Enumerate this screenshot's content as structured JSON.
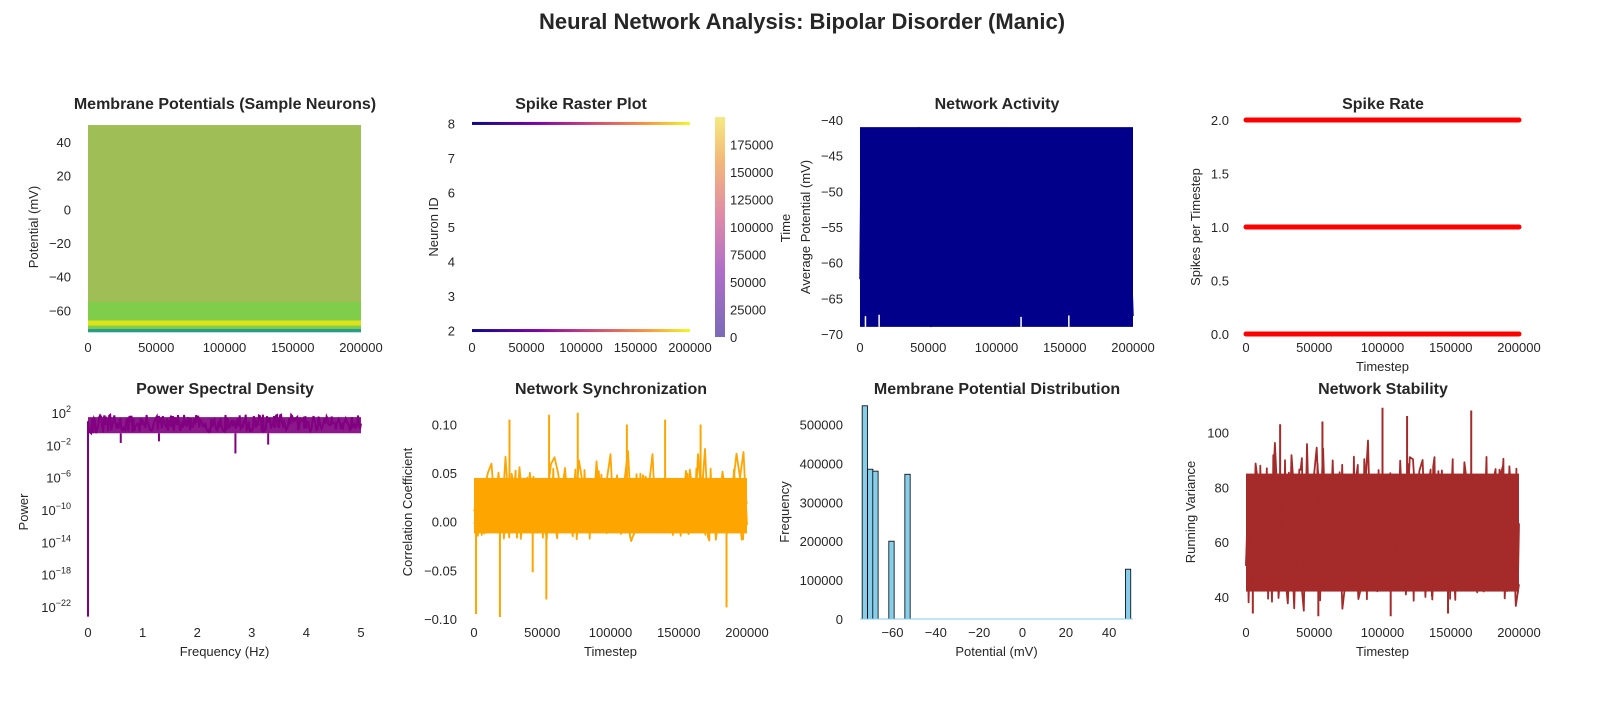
{
  "suptitle": "Neural Network Analysis: Bipolar Disorder (Manic)",
  "colors": {
    "membrane_fill": "#a0be56",
    "raster_low": "#0d0887",
    "raster_high": "#f0f921",
    "network_activity": "#00008b",
    "spike_rate": "#ff0000",
    "psd": "#800080",
    "sync": "#ffa500",
    "hist_fill": "#87ceeb",
    "hist_edge": "#000000",
    "stability": "#a52a2a",
    "text": "#262626"
  },
  "chart_data": [
    {
      "id": "membrane",
      "type": "line",
      "title": "Membrane Potentials (Sample Neurons)",
      "xlabel": "",
      "ylabel": "Potential (mV)",
      "xlim": [
        0,
        200000
      ],
      "ylim": [
        -74,
        53
      ],
      "xticks": [
        0,
        50000,
        100000,
        150000,
        200000
      ],
      "xtick_labels": [
        "0",
        "50000",
        "100000",
        "150000",
        "200000"
      ],
      "yticks": [
        -60,
        -40,
        -20,
        0,
        20,
        40
      ],
      "ytick_labels": [
        "−60",
        "−40",
        "−20",
        "0",
        "20",
        "40"
      ],
      "note": "many sample neurons oscillating between about -72 mV and +50 mV across all timesteps",
      "series": [
        {
          "values_range": [
            -72,
            50
          ],
          "color": "#a0be56"
        },
        {
          "values_range": [
            -72,
            -55
          ],
          "color": "#7fcd4b"
        },
        {
          "values_range": [
            -69,
            -66
          ],
          "color": "#dde318"
        },
        {
          "values_range": [
            -73,
            -71
          ],
          "color": "#2a9d8a"
        }
      ]
    },
    {
      "id": "raster",
      "type": "scatter",
      "title": "Spike Raster Plot",
      "xlabel": "",
      "ylabel": "Neuron ID",
      "colorbar_label": "Time",
      "xlim": [
        0,
        200000
      ],
      "ylim": [
        1.9,
        8.1
      ],
      "xticks": [
        0,
        50000,
        100000,
        150000,
        200000
      ],
      "xtick_labels": [
        "0",
        "50000",
        "100000",
        "150000",
        "200000"
      ],
      "yticks": [
        2,
        3,
        4,
        5,
        6,
        7,
        8
      ],
      "ytick_labels": [
        "2",
        "3",
        "4",
        "5",
        "6",
        "7",
        "8"
      ],
      "colorbar_ticks": [
        0,
        25000,
        50000,
        75000,
        100000,
        125000,
        150000,
        175000
      ],
      "colorbar_tick_labels": [
        "0",
        "25000",
        "50000",
        "75000",
        "100000",
        "125000",
        "150000",
        "175000"
      ],
      "colorbar_range": [
        0,
        199999
      ],
      "rows": [
        {
          "neuron_id": 2,
          "time_range": [
            0,
            199999
          ]
        },
        {
          "neuron_id": 8,
          "time_range": [
            0,
            199999
          ]
        }
      ]
    },
    {
      "id": "activity",
      "type": "line",
      "title": "Network Activity",
      "xlabel": "",
      "ylabel": "Average Potential (mV)",
      "xlim": [
        0,
        200000
      ],
      "ylim": [
        -70,
        -40
      ],
      "xticks": [
        0,
        50000,
        100000,
        150000,
        200000
      ],
      "xtick_labels": [
        "0",
        "50000",
        "100000",
        "150000",
        "200000"
      ],
      "yticks": [
        -70,
        -65,
        -60,
        -55,
        -50,
        -45,
        -40
      ],
      "ytick_labels": [
        "−70",
        "−65",
        "−60",
        "−55",
        "−50",
        "−45",
        "−40"
      ],
      "band": [
        -69,
        -41
      ],
      "dips": [
        {
          "x": 4000,
          "y": -67.5
        },
        {
          "x": 14000,
          "y": -67.3
        },
        {
          "x": 118000,
          "y": -67.6
        },
        {
          "x": 153000,
          "y": -67.4
        }
      ]
    },
    {
      "id": "spikerate",
      "type": "scatter",
      "title": "Spike Rate",
      "xlabel": "Timestep",
      "ylabel": "Spikes per Timestep",
      "xlim": [
        0,
        200000
      ],
      "ylim": [
        0,
        2
      ],
      "xticks": [
        0,
        50000,
        100000,
        150000,
        200000
      ],
      "xtick_labels": [
        "0",
        "50000",
        "100000",
        "150000",
        "200000"
      ],
      "yticks": [
        0,
        0.5,
        1,
        1.5,
        2
      ],
      "ytick_labels": [
        "0.0",
        "0.5",
        "1.0",
        "1.5",
        "2.0"
      ],
      "levels": [
        0,
        1,
        2
      ],
      "x_range": [
        0,
        199999
      ]
    },
    {
      "id": "psd",
      "type": "line",
      "title": "Power Spectral Density",
      "xlabel": "Frequency (Hz)",
      "ylabel": "Power",
      "yscale": "log",
      "xlim": [
        0,
        5
      ],
      "ylim_log10": [
        -23.5,
        3
      ],
      "xticks": [
        0,
        1,
        2,
        3,
        4,
        5
      ],
      "xtick_labels": [
        "0",
        "1",
        "2",
        "3",
        "4",
        "5"
      ],
      "ytick_exponents": [
        -22,
        -18,
        -14,
        -10,
        -6,
        -2,
        2
      ],
      "ytick_base": "10",
      "start_point_log10": -23.2,
      "band_log10": [
        -1,
        1.8
      ],
      "deep_dips": [
        {
          "x": 0.6,
          "y_log10": -1.7
        },
        {
          "x": 1.3,
          "y_log10": -1.5
        },
        {
          "x": 2.7,
          "y_log10": -3.0
        },
        {
          "x": 3.3,
          "y_log10": -1.9
        }
      ]
    },
    {
      "id": "sync",
      "type": "line",
      "title": "Network Synchronization",
      "xlabel": "Timestep",
      "ylabel": "Correlation Coefficient",
      "xlim": [
        0,
        200000
      ],
      "ylim": [
        -0.1,
        0.12
      ],
      "xticks": [
        0,
        50000,
        100000,
        150000,
        200000
      ],
      "xtick_labels": [
        "0",
        "50000",
        "100000",
        "150000",
        "200000"
      ],
      "yticks": [
        -0.1,
        -0.05,
        0,
        0.05,
        0.1
      ],
      "ytick_labels": [
        "−0.10",
        "−0.05",
        "0.00",
        "0.05",
        "0.10"
      ],
      "band": [
        -0.02,
        0.055
      ],
      "extremes": [
        {
          "x": 1500,
          "y": -0.095
        },
        {
          "x": 19000,
          "y": -0.098
        },
        {
          "x": 43000,
          "y": -0.052
        },
        {
          "x": 53000,
          "y": -0.08
        },
        {
          "x": 185000,
          "y": -0.088
        },
        {
          "x": 26000,
          "y": 0.105
        },
        {
          "x": 55000,
          "y": 0.11
        },
        {
          "x": 76000,
          "y": 0.112
        },
        {
          "x": 112000,
          "y": 0.1
        },
        {
          "x": 140000,
          "y": 0.105
        },
        {
          "x": 166000,
          "y": 0.1
        }
      ]
    },
    {
      "id": "hist",
      "type": "bar",
      "title": "Membrane Potential Distribution",
      "xlabel": "Potential (mV)",
      "ylabel": "Frequency",
      "xlim": [
        -75,
        51
      ],
      "ylim": [
        0,
        550000
      ],
      "xticks": [
        -60,
        -40,
        -20,
        0,
        20,
        40
      ],
      "xtick_labels": [
        "−60",
        "−40",
        "−20",
        "0",
        "20",
        "40"
      ],
      "yticks": [
        0,
        100000,
        200000,
        300000,
        400000,
        500000
      ],
      "ytick_labels": [
        "0",
        "100000",
        "200000",
        "300000",
        "400000",
        "500000"
      ],
      "bin_width": 2.46,
      "bins": [
        {
          "left": -74,
          "count": 548000
        },
        {
          "left": -71.5,
          "count": 385000
        },
        {
          "left": -69.1,
          "count": 380000
        },
        {
          "left": -61.7,
          "count": 200000
        },
        {
          "left": -54.3,
          "count": 372000
        },
        {
          "left": 47.5,
          "count": 128000
        }
      ]
    },
    {
      "id": "stability",
      "type": "line",
      "title": "Network Stability",
      "xlabel": "Timestep",
      "ylabel": "Running Variance",
      "xlim": [
        0,
        200000
      ],
      "ylim": [
        32,
        110
      ],
      "xticks": [
        0,
        50000,
        100000,
        150000,
        200000
      ],
      "xtick_labels": [
        "0",
        "50000",
        "100000",
        "150000",
        "200000"
      ],
      "yticks": [
        40,
        60,
        80,
        100
      ],
      "ytick_labels": [
        "40",
        "60",
        "80",
        "100"
      ],
      "band": [
        38,
        92
      ],
      "extremes": [
        {
          "x": 25000,
          "y": 103
        },
        {
          "x": 56000,
          "y": 104
        },
        {
          "x": 100000,
          "y": 109
        },
        {
          "x": 118000,
          "y": 106
        },
        {
          "x": 165000,
          "y": 108
        },
        {
          "x": 5000,
          "y": 34
        },
        {
          "x": 53000,
          "y": 33
        },
        {
          "x": 106000,
          "y": 33
        },
        {
          "x": 148000,
          "y": 34
        }
      ]
    }
  ]
}
